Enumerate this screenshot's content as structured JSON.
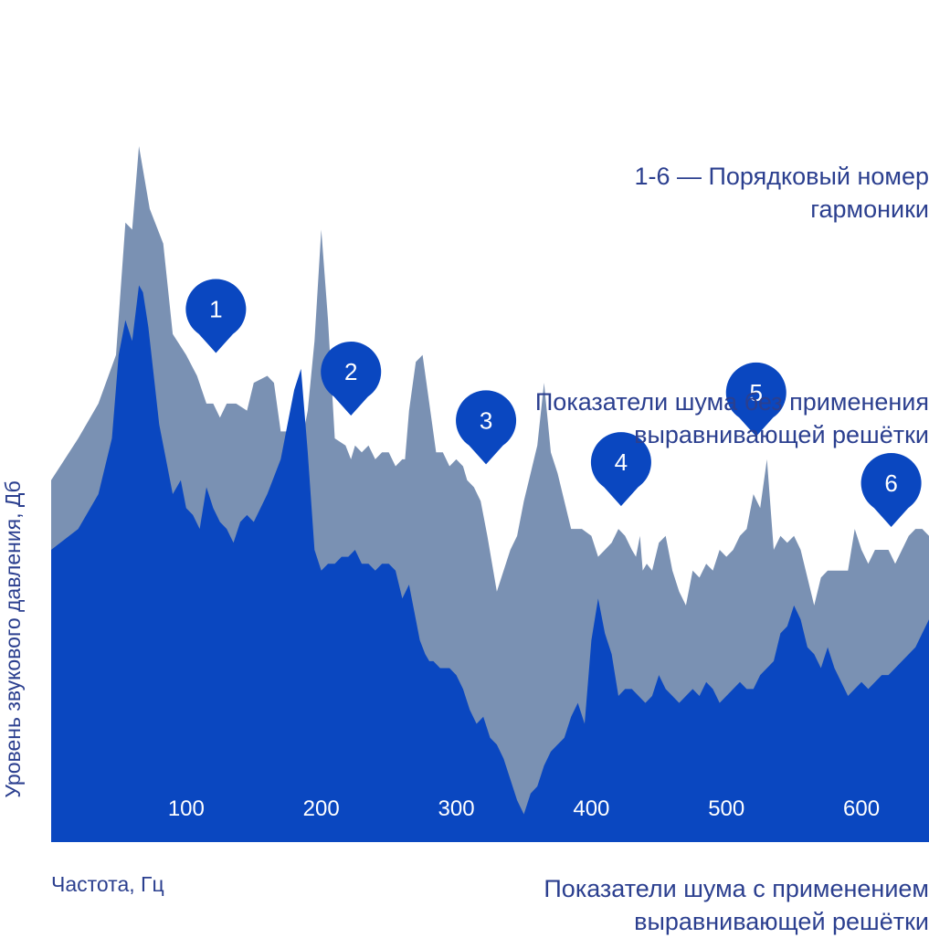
{
  "chart_data": {
    "type": "area",
    "xlabel": "Частота, Гц",
    "ylabel": "Уровень звукового давления, Дб",
    "xticks": [
      100,
      200,
      300,
      400,
      500,
      600
    ],
    "xlim": [
      0,
      650
    ],
    "ylim": [
      0,
      100
    ],
    "series": [
      {
        "name": "Показатели шума без применения выравнивающей решётки",
        "color": "#7a91b3",
        "x": [
          0,
          20,
          35,
          48,
          55,
          60,
          65,
          73,
          83,
          90,
          100,
          108,
          115,
          120,
          125,
          130,
          137,
          145,
          150,
          160,
          165,
          170,
          180,
          185,
          190,
          195,
          200,
          205,
          210,
          218,
          222,
          225,
          230,
          235,
          240,
          245,
          250,
          255,
          260,
          262,
          265,
          270,
          275,
          280,
          285,
          290,
          295,
          300,
          305,
          308,
          313,
          318,
          323,
          330,
          340,
          345,
          350,
          355,
          360,
          365,
          370,
          375,
          380,
          385,
          393,
          400,
          405,
          410,
          415,
          420,
          425,
          430,
          433,
          436,
          438,
          441,
          445,
          450,
          455,
          460,
          465,
          470,
          475,
          480,
          485,
          490,
          495,
          500,
          505,
          510,
          515,
          520,
          525,
          530,
          535,
          540,
          545,
          550,
          555,
          560,
          565,
          570,
          575,
          580,
          585,
          590,
          595,
          600,
          605,
          610,
          615,
          620,
          625,
          630,
          635,
          640,
          645,
          650
        ],
        "values": [
          52,
          58,
          63,
          70,
          89,
          88,
          100,
          91,
          86,
          73,
          70,
          67,
          63,
          63,
          61,
          63,
          63,
          62,
          66,
          67,
          66,
          59,
          59,
          57,
          62,
          72,
          88,
          75,
          58,
          57,
          55,
          57,
          56,
          57,
          55,
          56,
          56,
          54,
          55,
          55,
          62,
          69,
          70,
          63,
          56,
          56,
          54,
          55,
          54,
          52,
          51,
          49,
          44,
          36,
          42,
          44,
          49,
          53,
          57,
          66,
          56,
          53,
          49,
          45,
          45,
          44,
          41,
          42,
          43,
          45,
          44,
          42,
          41,
          44,
          39,
          40,
          39,
          43,
          44,
          39,
          36,
          34,
          39,
          38,
          40,
          39,
          42,
          41,
          42,
          44,
          45,
          50,
          48,
          55,
          42,
          44,
          43,
          44,
          42,
          38,
          34,
          38,
          39,
          39,
          39,
          39,
          45,
          42,
          40,
          42,
          42,
          42,
          40,
          42,
          44,
          45,
          45,
          44
        ]
      },
      {
        "name": "Показатели шума с применением выравнивающей решётки",
        "color": "#0a47c0",
        "x": [
          0,
          20,
          35,
          45,
          50,
          55,
          60,
          65,
          68,
          72,
          80,
          90,
          96,
          100,
          105,
          110,
          115,
          120,
          125,
          130,
          135,
          140,
          145,
          150,
          160,
          170,
          175,
          180,
          185,
          190,
          195,
          200,
          205,
          210,
          215,
          220,
          225,
          230,
          235,
          240,
          245,
          250,
          255,
          260,
          265,
          270,
          273,
          277,
          280,
          283,
          288,
          295,
          300,
          305,
          310,
          315,
          320,
          325,
          330,
          335,
          340,
          345,
          350,
          355,
          360,
          365,
          370,
          375,
          380,
          385,
          390,
          395,
          400,
          405,
          410,
          415,
          420,
          425,
          430,
          435,
          440,
          445,
          450,
          455,
          460,
          465,
          470,
          475,
          480,
          485,
          490,
          495,
          500,
          505,
          510,
          515,
          520,
          525,
          530,
          535,
          540,
          545,
          550,
          555,
          560,
          565,
          570,
          575,
          580,
          585,
          590,
          595,
          600,
          605,
          610,
          615,
          620,
          625,
          630,
          635,
          640,
          645,
          650
        ],
        "values": [
          42,
          45,
          50,
          58,
          70,
          75,
          72,
          80,
          79,
          74,
          60,
          50,
          52,
          48,
          47,
          45,
          51,
          48,
          46,
          45,
          43,
          46,
          47,
          46,
          50,
          55,
          60,
          65,
          68,
          56,
          42,
          39,
          40,
          40,
          41,
          41,
          42,
          40,
          40,
          39,
          40,
          40,
          39,
          35,
          37,
          32,
          29,
          27,
          26,
          26,
          25,
          25,
          24,
          22,
          19,
          17,
          18,
          15,
          14,
          12,
          9,
          6,
          4,
          7,
          8,
          11,
          13,
          14,
          15,
          18,
          20,
          17,
          29,
          35,
          30,
          27,
          21,
          22,
          22,
          21,
          20,
          21,
          24,
          22,
          21,
          20,
          21,
          22,
          21,
          23,
          22,
          20,
          21,
          22,
          23,
          22,
          22,
          24,
          25,
          26,
          30,
          31,
          34,
          32,
          28,
          27,
          25,
          28,
          25,
          23,
          21,
          22,
          23,
          22,
          23,
          24,
          24,
          25,
          26,
          27,
          28,
          30,
          32
        ]
      }
    ],
    "annotations": [
      {
        "label": "1",
        "x": 122
      },
      {
        "label": "2",
        "x": 222
      },
      {
        "label": "3",
        "x": 322
      },
      {
        "label": "4",
        "x": 422
      },
      {
        "label": "5",
        "x": 522
      },
      {
        "label": "6",
        "x": 622
      }
    ]
  },
  "texts": {
    "harmonic_note": "1-6 — Порядковый номер\nгармоники",
    "without_grid": "Показатели шума без применения\nвыравнивающей решётки",
    "with_grid": "Показатели шума с применением\nвыравнивающей решётки"
  },
  "colors": {
    "marker": "#0a47c0",
    "tick_text": "#ffffff",
    "text": "#2b3f8f"
  }
}
